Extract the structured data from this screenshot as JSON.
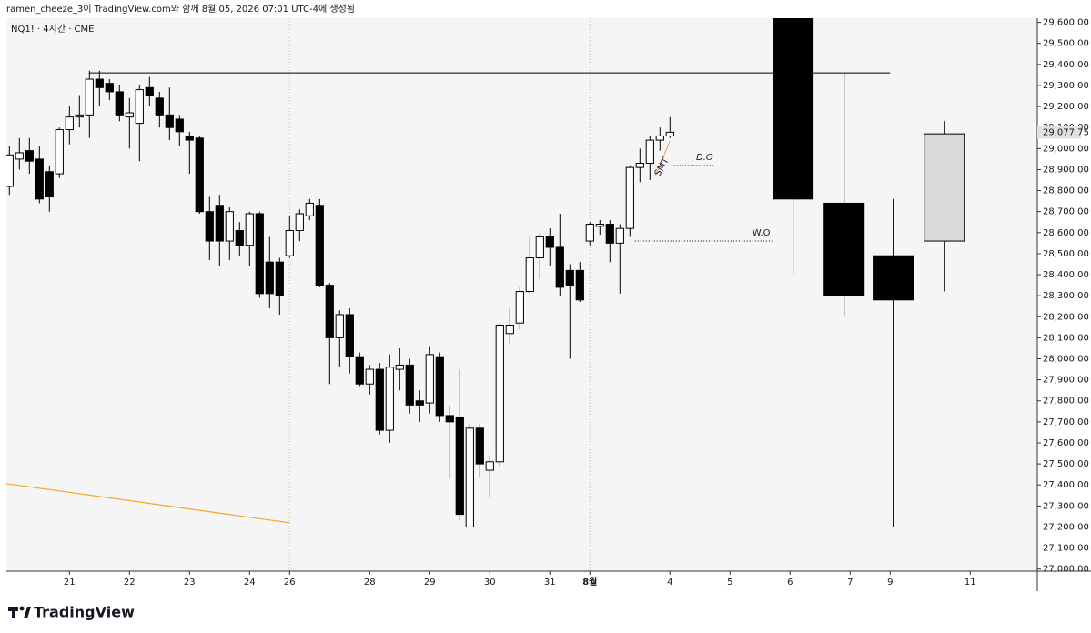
{
  "chart_data": {
    "type": "candlestick",
    "caption": "ramen_cheeze_3이 TradingView.com와 함께 8월 05, 2026 07:01 UTC-4에 생성됨",
    "title": "NQ1! · 4시간 · CME",
    "brand": "TradingView",
    "xlim": [
      -0.3,
      102.7
    ],
    "ylim": [
      26990,
      29620
    ],
    "xticks": [
      {
        "value": 6,
        "label": "21"
      },
      {
        "value": 12,
        "label": "22"
      },
      {
        "value": 18,
        "label": "23"
      },
      {
        "value": 24,
        "label": "24"
      },
      {
        "value": 28,
        "label": "26"
      },
      {
        "value": 36,
        "label": "28"
      },
      {
        "value": 42,
        "label": "29"
      },
      {
        "value": 48,
        "label": "30"
      },
      {
        "value": 54,
        "label": "31"
      },
      {
        "value": 58,
        "label": "8월"
      },
      {
        "value": 66,
        "label": "4"
      },
      {
        "value": 72,
        "label": "5"
      },
      {
        "value": 78,
        "label": "6"
      },
      {
        "value": 84,
        "label": "7"
      },
      {
        "value": 88,
        "label": "9"
      },
      {
        "value": 96,
        "label": "11"
      }
    ],
    "yticks": [
      {
        "value": 27000,
        "label": "27,000.00"
      },
      {
        "value": 27100,
        "label": "27,100.00"
      },
      {
        "value": 27200,
        "label": "27,200.00"
      },
      {
        "value": 27300,
        "label": "27,300.00"
      },
      {
        "value": 27400,
        "label": "27,400.00"
      },
      {
        "value": 27500,
        "label": "27,500.00"
      },
      {
        "value": 27600,
        "label": "27,600.00"
      },
      {
        "value": 27700,
        "label": "27,700.00"
      },
      {
        "value": 27800,
        "label": "27,800.00"
      },
      {
        "value": 27900,
        "label": "27,900.00"
      },
      {
        "value": 28000,
        "label": "28,000.00"
      },
      {
        "value": 28100,
        "label": "28,100.00"
      },
      {
        "value": 28200,
        "label": "28,200.00"
      },
      {
        "value": 28300,
        "label": "28,300.00"
      },
      {
        "value": 28400,
        "label": "28,400.00"
      },
      {
        "value": 28500,
        "label": "28,500.00"
      },
      {
        "value": 28600,
        "label": "28,600.00"
      },
      {
        "value": 28700,
        "label": "28,700.00"
      },
      {
        "value": 28800,
        "label": "28,800.00"
      },
      {
        "value": 28900,
        "label": "28,900.00"
      },
      {
        "value": 29000,
        "label": "29,000.00"
      },
      {
        "value": 29100,
        "label": "29,100.00"
      },
      {
        "value": 29200,
        "label": "29,200.00"
      },
      {
        "value": 29300,
        "label": "29,300.00"
      },
      {
        "value": 29400,
        "label": "29,400.00"
      },
      {
        "value": 29500,
        "label": "29,500.00"
      },
      {
        "value": 29600,
        "label": "29,600.00"
      }
    ],
    "separators": [
      28,
      58
    ],
    "up_color": "#ffffff",
    "down_color": "#000000",
    "series": [
      {
        "x": [
          0,
          1,
          2,
          3,
          4,
          5,
          6,
          7,
          8,
          9,
          10,
          11,
          12,
          13,
          14,
          15,
          16,
          17,
          18,
          19,
          20,
          21,
          22,
          23,
          24,
          25,
          26,
          27,
          28,
          29,
          30,
          31,
          32,
          33,
          34,
          35,
          36,
          37,
          38,
          39,
          40,
          41,
          42,
          43,
          44,
          45,
          46,
          47,
          48,
          49,
          50,
          51,
          52,
          53,
          54,
          55,
          56,
          57,
          58,
          59,
          60,
          61,
          62,
          63,
          64,
          65,
          66
        ],
        "open": [
          28820,
          28950,
          28990,
          28950,
          28890,
          28880,
          29090,
          29150,
          29160,
          29330,
          29310,
          29270,
          29150,
          29120,
          29290,
          29240,
          29160,
          29140,
          29060,
          29050,
          28700,
          28730,
          28560,
          28610,
          28540,
          28690,
          28460,
          28460,
          28490,
          28610,
          28680,
          28730,
          28350,
          28100,
          28210,
          28010,
          27880,
          27950,
          27660,
          27950,
          27970,
          27800,
          27790,
          28010,
          27730,
          27720,
          27200,
          27670,
          27470,
          27510,
          28120,
          28170,
          28320,
          28480,
          28580,
          28530,
          28420,
          28420,
          28560,
          28630,
          28640,
          28550,
          28620,
          28910,
          28930,
          29040,
          29060
        ],
        "high": [
          29010,
          29050,
          29050,
          29010,
          28920,
          29100,
          29200,
          29250,
          29370,
          29370,
          29330,
          29300,
          29240,
          29300,
          29340,
          29270,
          29290,
          29160,
          29080,
          29060,
          28770,
          28780,
          28720,
          28650,
          28700,
          28700,
          28580,
          28480,
          28680,
          28710,
          28760,
          28760,
          28360,
          28230,
          28240,
          28030,
          27970,
          27980,
          28020,
          28050,
          28000,
          27850,
          28060,
          28030,
          27780,
          27950,
          27690,
          27690,
          27540,
          28170,
          28240,
          28340,
          28580,
          28600,
          28620,
          28690,
          28450,
          28460,
          28650,
          28660,
          28660,
          28640,
          28920,
          29000,
          29060,
          29100,
          29150
        ],
        "low": [
          28780,
          28900,
          28880,
          28740,
          28700,
          28860,
          29020,
          29100,
          29050,
          29200,
          29230,
          29130,
          29000,
          28940,
          29200,
          29100,
          29040,
          29010,
          28880,
          28690,
          28470,
          28440,
          28470,
          28490,
          28440,
          28290,
          28240,
          28210,
          28480,
          28560,
          28660,
          28340,
          27880,
          27960,
          27930,
          27870,
          27830,
          27640,
          27600,
          27850,
          27740,
          27700,
          27740,
          27700,
          27430,
          27230,
          27200,
          27440,
          27340,
          27490,
          28070,
          28140,
          28310,
          28380,
          28440,
          28300,
          28000,
          28270,
          28540,
          28590,
          28460,
          28310,
          28580,
          28840,
          28850,
          28990,
          29050
        ],
        "close": [
          28970,
          28980,
          28940,
          28760,
          28770,
          29090,
          29150,
          29160,
          29330,
          29290,
          29270,
          29160,
          29170,
          29280,
          29250,
          29160,
          29100,
          29080,
          29040,
          28700,
          28560,
          28560,
          28700,
          28540,
          28690,
          28310,
          28310,
          28300,
          28610,
          28690,
          28740,
          28350,
          28100,
          28210,
          28010,
          27880,
          27950,
          27660,
          27960,
          27970,
          27780,
          27780,
          28020,
          27730,
          27700,
          27260,
          27670,
          27500,
          27510,
          28160,
          28160,
          28320,
          28480,
          28580,
          28530,
          28340,
          28350,
          28280,
          28640,
          28640,
          28550,
          28620,
          28910,
          28930,
          29040,
          29060,
          29077.75
        ]
      },
      {
        "x": [
          78.3,
          83.4,
          88.3,
          93.4
        ],
        "open": [
          29640,
          28740,
          28490,
          28560
        ],
        "high": [
          29640,
          29360,
          28760,
          29130
        ],
        "low": [
          28400,
          28200,
          27200,
          28320
        ],
        "close": [
          28760,
          28300,
          28280,
          29070
        ],
        "up_color": "#d9d9d9"
      }
    ],
    "last_price": {
      "value": 29077.75,
      "label": "29,077.75"
    },
    "levels": [
      {
        "value": 29360,
        "x": [
          8,
          88
        ]
      },
      {
        "value": 28560,
        "x": [
          62.5,
          76.2
        ],
        "label": "W.O"
      },
      {
        "value": 28920,
        "x": [
          66.4,
          70.5
        ],
        "label": "D.O"
      }
    ],
    "smt": {
      "label": "SMT",
      "color": "#f5a05a"
    },
    "trendline": {
      "x": [
        -0.3,
        28
      ],
      "y": [
        27406,
        27220
      ],
      "color": "#f5a623"
    }
  }
}
